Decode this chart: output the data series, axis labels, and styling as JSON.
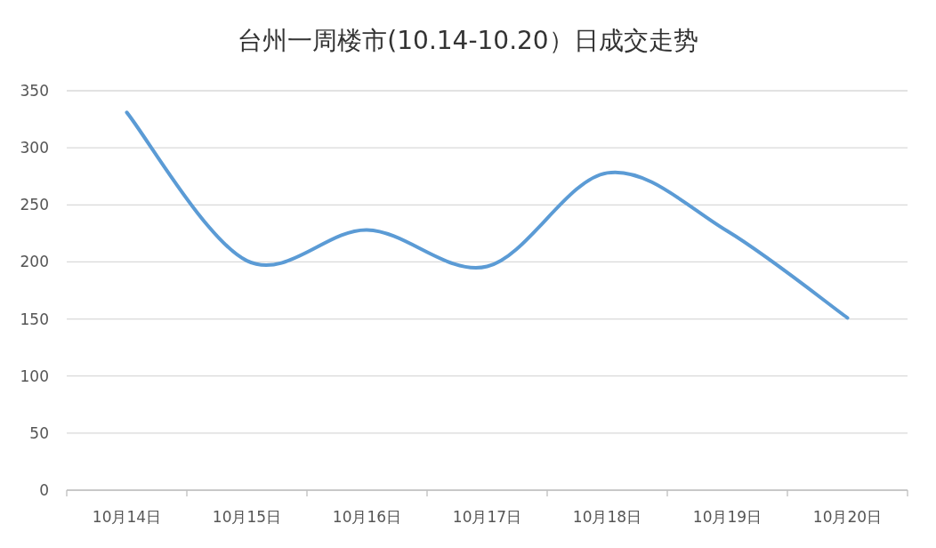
{
  "chart_data": {
    "type": "line",
    "title": "台州一周楼市(10.14-10.20）日成交走势",
    "categories": [
      "10月14日",
      "10月15日",
      "10月16日",
      "10月17日",
      "10月18日",
      "10月19日",
      "10月20日"
    ],
    "series": [
      {
        "color": "#5b9bd5",
        "values": [
          331,
          201,
          228,
          196,
          278,
          227,
          151
        ]
      }
    ],
    "ylim": [
      0,
      350
    ],
    "yticks": [
      0,
      50,
      100,
      150,
      200,
      250,
      300,
      350
    ],
    "grid": "y",
    "marker": "none",
    "line_style": "solid"
  }
}
